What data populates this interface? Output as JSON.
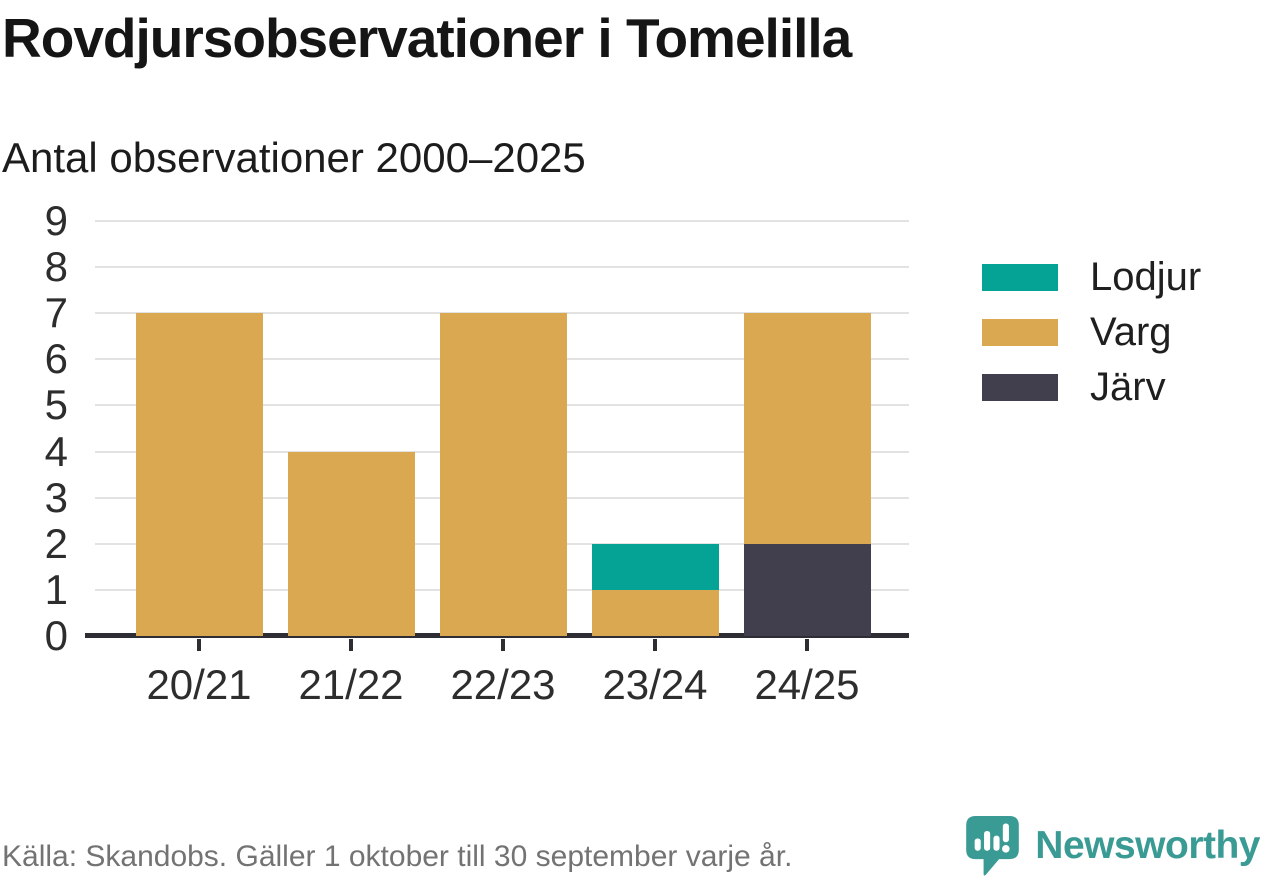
{
  "header": {
    "title": "Rovdjursobservationer i Tomelilla",
    "subtitle": "Antal observationer 2000–2025"
  },
  "footer": {
    "source": "Källa: Skandobs. Gäller 1 oktober till 30 september varje år.",
    "brand": "Newsworthy"
  },
  "colors": {
    "lodjur_teal": "#05a296",
    "varg_tan": "#d9a850",
    "jarv_dark": "#413e4e",
    "axis": "#2e2d33",
    "grid": "#e2e2e2",
    "tick_label": "#2d2d2d",
    "source_text": "#737373",
    "brand_teal": "#3a9a94"
  },
  "chart_data": {
    "type": "bar",
    "stacked": true,
    "title": "Rovdjursobservationer i Tomelilla",
    "subtitle": "Antal observationer 2000–2025",
    "categories": [
      "20/21",
      "21/22",
      "22/23",
      "23/24",
      "24/25"
    ],
    "series": [
      {
        "name": "Lodjur",
        "color": "#05a296",
        "values": [
          0,
          0,
          0,
          1,
          0
        ]
      },
      {
        "name": "Varg",
        "color": "#d9a850",
        "values": [
          7,
          4,
          7,
          1,
          5
        ]
      },
      {
        "name": "Järv",
        "color": "#413e4e",
        "values": [
          0,
          0,
          0,
          0,
          2
        ]
      }
    ],
    "totals": [
      7,
      4,
      7,
      2,
      7
    ],
    "stack_order_bottom_to_top": [
      "Järv",
      "Varg",
      "Lodjur"
    ],
    "ylim": [
      0,
      9
    ],
    "yticks": [
      0,
      1,
      2,
      3,
      4,
      5,
      6,
      7,
      8,
      9
    ],
    "grid": true,
    "legend_position": "right"
  }
}
